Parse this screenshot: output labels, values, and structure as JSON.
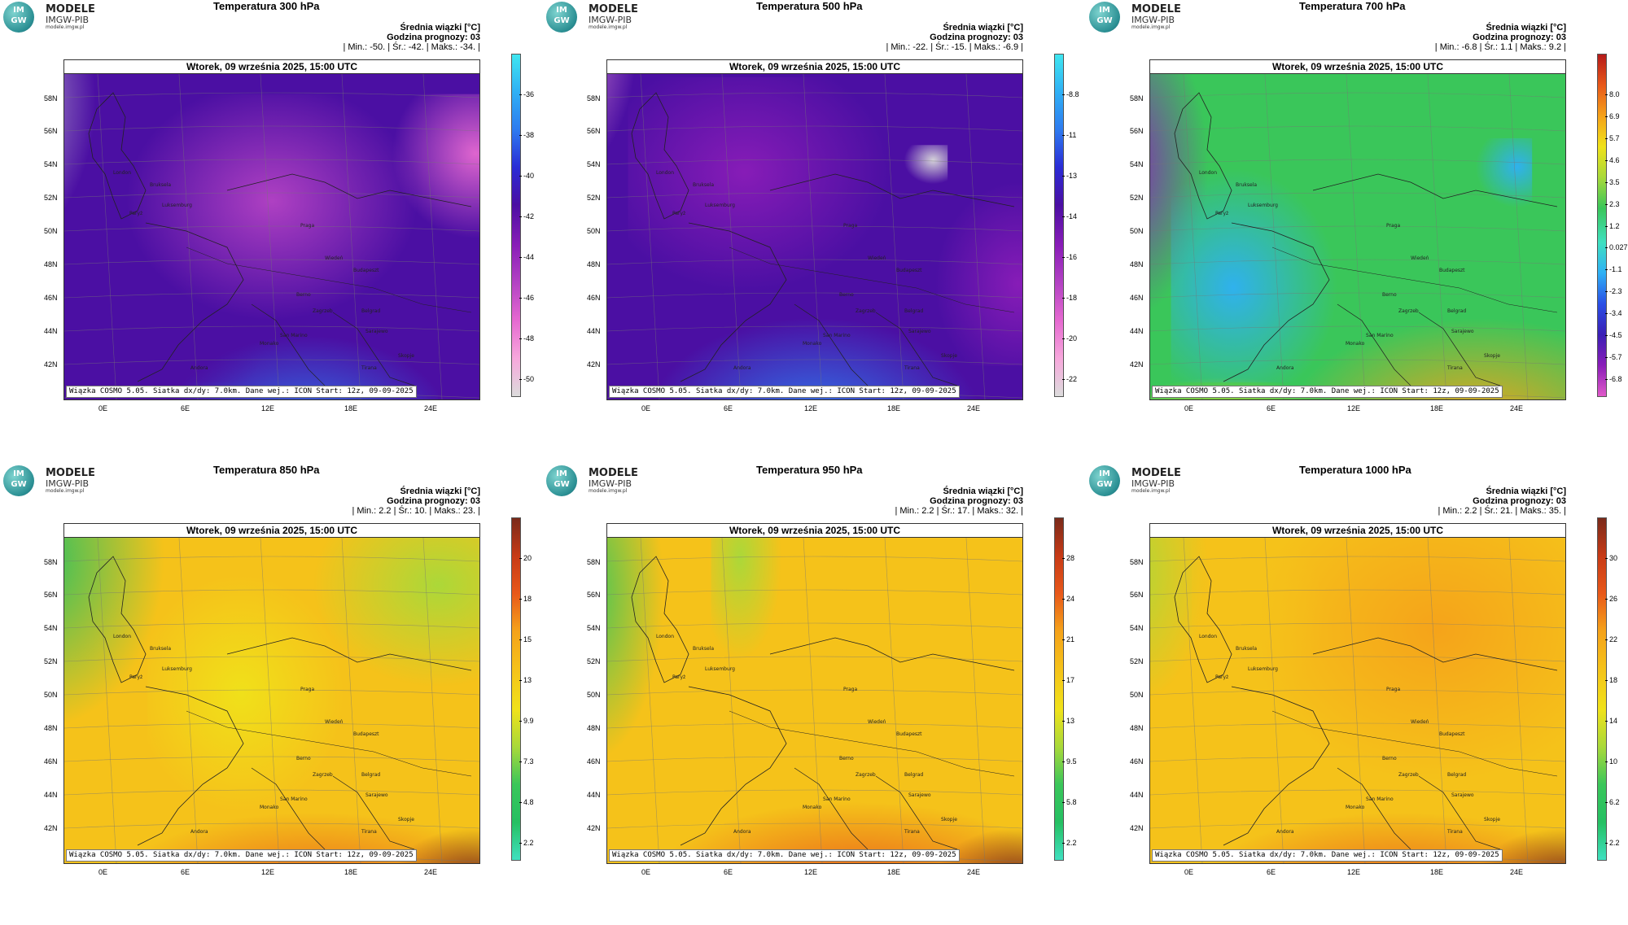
{
  "brand": {
    "disc_top": "IM",
    "disc_bottom": "GW",
    "line1": "MODELE",
    "line2": "IMGW-PIB",
    "line3": "modele.imgw.pl"
  },
  "common": {
    "header_title": "Średnia wiązki [°C]",
    "forecast_hour": "Godzina prognozy: 03",
    "date_bar": "Wtorek, 09 września 2025, 15:00 UTC",
    "footer": "Wiązka COSMO 5.05. Siatka dx/dy: 7.0km. Dane wej.: ICON Start: 12z, 09-09-2025",
    "lat_labels": [
      "58N",
      "56N",
      "54N",
      "52N",
      "50N",
      "48N",
      "46N",
      "44N",
      "42N"
    ],
    "lon_labels": [
      "0E",
      "6E",
      "12E",
      "18E",
      "24E"
    ],
    "cities": [
      "London",
      "Bruksela",
      "Paryż",
      "Luksemburg",
      "Praga",
      "Wiedeń",
      "Budapeszt",
      "Berno",
      "Zagrzeb",
      "Belgrad",
      "San Marino",
      "Monako",
      "Sarajewo",
      "Andora",
      "Skopje",
      "Tirana"
    ]
  },
  "panels": [
    {
      "title": "Temperatura 300 hPa",
      "stats": "| Min.: -50. | Śr.: -42. | Maks.: -34. |",
      "palette": [
        "#dcdcdc",
        "#f7a8dc",
        "#e66ad1",
        "#b443c4",
        "#8a1db8",
        "#4b0fa3",
        "#2a2cd6",
        "#2e7bf0",
        "#2fb0f5",
        "#3fe6f0"
      ],
      "colorbar_ticks": [
        "-36",
        "-38",
        "-40",
        "-42",
        "-44",
        "-46",
        "-48",
        "-50"
      ]
    },
    {
      "title": "Temperatura 500 hPa",
      "stats": "| Min.: -22. | Śr.: -15. | Maks.: -6.9 |",
      "palette": [
        "#dcdcdc",
        "#f7a8dc",
        "#e66ad1",
        "#b443c4",
        "#8a1db8",
        "#4b0fa3",
        "#2a2cd6",
        "#2e7bf0",
        "#2fb0f5",
        "#3fe6f0"
      ],
      "colorbar_ticks": [
        "-8.8",
        "-11",
        "-13",
        "-14",
        "-16",
        "-18",
        "-20",
        "-22"
      ]
    },
    {
      "title": "Temperatura 700 hPa",
      "stats": "| Min.: -6.8 | Śr.: 1.1 | Maks.: 9.2 |",
      "palette": [
        "#e05ac9",
        "#8a1db8",
        "#3a1fb5",
        "#2a4fe6",
        "#2fb0f5",
        "#3fe0c0",
        "#3ac65a",
        "#a8d93a",
        "#f0e21a",
        "#f5a21a",
        "#e8581a",
        "#b51a1a"
      ],
      "colorbar_ticks": [
        "8.0",
        "6.9",
        "5.7",
        "4.6",
        "3.5",
        "2.3",
        "1.2",
        "0.027",
        "-1.1",
        "-2.3",
        "-3.4",
        "-4.5",
        "-5.7",
        "-6.8"
      ]
    },
    {
      "title": "Temperatura 850 hPa",
      "stats": "| Min.: 2.2 | Śr.: 10. | Maks.: 23. |",
      "palette": [
        "#3fe0c0",
        "#25c063",
        "#3ac65a",
        "#a8d93a",
        "#f0e21a",
        "#f5c21a",
        "#f5a21a",
        "#e8581a",
        "#c73a16",
        "#7a2a1a"
      ],
      "colorbar_ticks": [
        "20",
        "18",
        "15",
        "13",
        "9.9",
        "7.3",
        "4.8",
        "2.2"
      ]
    },
    {
      "title": "Temperatura 950 hPa",
      "stats": "| Min.: 2.2 | Śr.: 17. | Maks.: 32. |",
      "palette": [
        "#3fe0c0",
        "#25c063",
        "#3ac65a",
        "#a8d93a",
        "#f0e21a",
        "#f5c21a",
        "#f5a21a",
        "#e8581a",
        "#c73a16",
        "#7a2a1a"
      ],
      "colorbar_ticks": [
        "28",
        "24",
        "21",
        "17",
        "13",
        "9.5",
        "5.8",
        "2.2"
      ]
    },
    {
      "title": "Temperatura 1000 hPa",
      "stats": "| Min.: 2.2 | Śr.: 21. | Maks.: 35. |",
      "palette": [
        "#3fe0c0",
        "#25c063",
        "#3ac65a",
        "#a8d93a",
        "#f0e21a",
        "#f5c21a",
        "#f5a21a",
        "#e8581a",
        "#c73a16",
        "#7a2a1a"
      ],
      "colorbar_ticks": [
        "30",
        "26",
        "22",
        "18",
        "14",
        "10",
        "6.2",
        "2.2"
      ]
    }
  ]
}
